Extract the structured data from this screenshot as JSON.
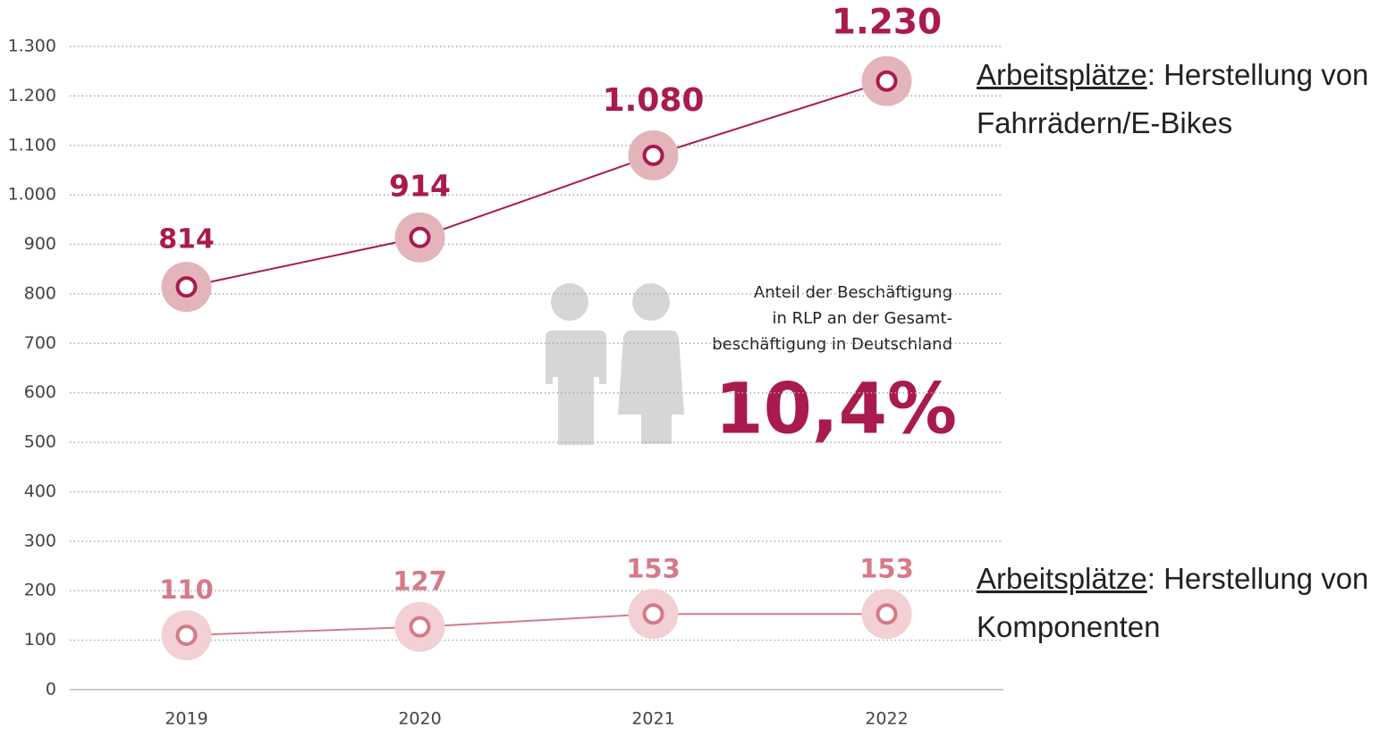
{
  "chart_data": {
    "type": "line",
    "categories": [
      "2019",
      "2020",
      "2021",
      "2022"
    ],
    "series": [
      {
        "name": "Arbeitsplätze: Herstellung von Fahrrädern/E-Bikes",
        "color": "#a91a4f",
        "halo": "#e3b4ba",
        "values": [
          814,
          914,
          1080,
          1230
        ],
        "value_labels": [
          "814",
          "914",
          "1.080",
          "1.230"
        ]
      },
      {
        "name": "Arbeitsplätze: Herstellung von Komponenten",
        "color": "#d67a88",
        "halo": "#f2d0d4",
        "values": [
          110,
          127,
          153,
          153
        ]
      }
    ],
    "ylim": [
      0,
      1300
    ],
    "yticks": [
      0,
      100,
      200,
      300,
      400,
      500,
      600,
      700,
      800,
      900,
      {
        "value": 1000,
        "label": "1.000"
      },
      {
        "value": 1100,
        "label": "1.100"
      },
      {
        "value": 1200,
        "label": "1.200"
      },
      {
        "value": 1300,
        "label": "1.300"
      }
    ],
    "grid": true,
    "annotation": {
      "lines": [
        "Anteil der Beschäftigung",
        "in RLP an der Gesamt-",
        "beschäftigung in Deutschland"
      ],
      "highlight": "10,4%"
    }
  }
}
